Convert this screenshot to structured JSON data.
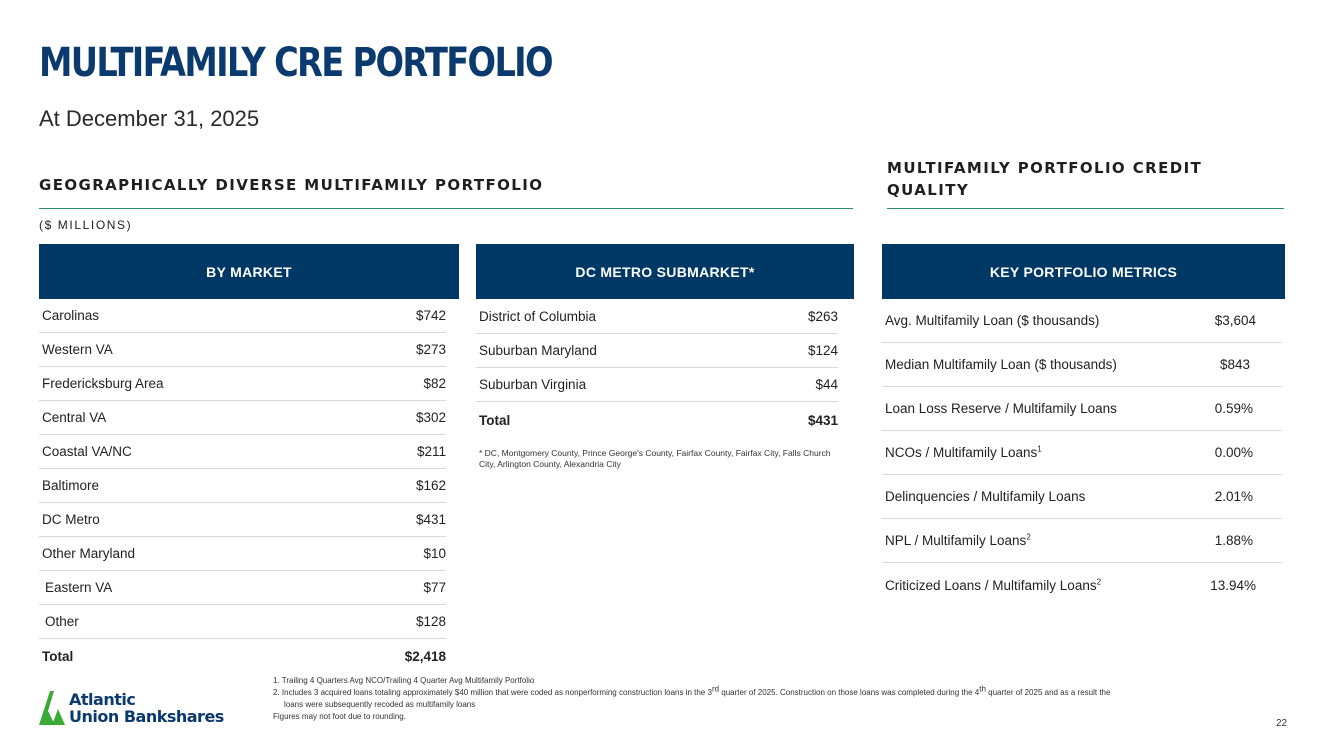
{
  "header": {
    "title": "MULTIFAMILY CRE PORTFOLIO",
    "subtitle": "At December 31, 2025"
  },
  "left_section": {
    "heading": "GEOGRAPHICALLY DIVERSE MULTIFAMILY PORTFOLIO",
    "units": "($ MILLIONS)"
  },
  "right_section": {
    "heading_line1": "MULTIFAMILY PORTFOLIO CREDIT",
    "heading_line2": "QUALITY"
  },
  "by_market": {
    "header": "BY MARKET",
    "rows": [
      {
        "label": "Carolinas",
        "value": "$742"
      },
      {
        "label": "Western VA",
        "value": "$273"
      },
      {
        "label": "Fredericksburg Area",
        "value": "$82"
      },
      {
        "label": "Central VA",
        "value": "$302"
      },
      {
        "label": "Coastal VA/NC",
        "value": "$211"
      },
      {
        "label": "Baltimore",
        "value": "$162"
      },
      {
        "label": "DC Metro",
        "value": "$431"
      },
      {
        "label": "Other Maryland",
        "value": "$10"
      },
      {
        "label": "Eastern VA",
        "value": "$77"
      },
      {
        "label": "Other",
        "value": "$128"
      }
    ],
    "total": {
      "label": "Total",
      "value": "$2,418"
    }
  },
  "dc_metro": {
    "header": "DC METRO SUBMARKET*",
    "rows": [
      {
        "label": "District of Columbia",
        "value": "$263"
      },
      {
        "label": "Suburban Maryland",
        "value": "$124"
      },
      {
        "label": "Suburban Virginia",
        "value": "$44"
      }
    ],
    "total": {
      "label": "Total",
      "value": "$431"
    },
    "footnote": "* DC, Montgomery County, Prince George's County, Fairfax County, Fairfax City, Falls Church City, Arlington County, Alexandria City"
  },
  "key_metrics": {
    "header": "KEY PORTFOLIO METRICS",
    "rows": [
      {
        "label": "Avg. Multifamily Loan ($ thousands)",
        "sup": "",
        "value": "$3,604"
      },
      {
        "label": "Median Multifamily Loan ($ thousands)",
        "sup": "",
        "value": "$843"
      },
      {
        "label": "Loan Loss Reserve / Multifamily Loans",
        "sup": "",
        "value": "0.59%"
      },
      {
        "label": "NCOs / Multifamily Loans",
        "sup": "1",
        "value": "0.00%"
      },
      {
        "label": "Delinquencies / Multifamily Loans",
        "sup": "",
        "value": "2.01%"
      },
      {
        "label": "NPL / Multifamily Loans",
        "sup": "2",
        "value": "1.88%"
      },
      {
        "label": "Criticized Loans / Multifamily Loans",
        "sup": "2",
        "value": "13.94%"
      }
    ]
  },
  "notes": {
    "n1": "1. Trailing 4 Quarters Avg NCO/Trailing 4 Quarter Avg Multifamily Portfolio",
    "n2a": "2. Includes 3 acquired loans totaling approximately $40 million that were coded as nonperforming construction loans in the 3",
    "n2_sup1": "rd",
    "n2b": " quarter of 2025. Construction on those loans was completed during the 4",
    "n2_sup2": "th",
    "n2c": " quarter of 2025 and as a result the",
    "n2d": "loans were subsequently recoded as multifamily loans",
    "n3": "Figures may not foot due to rounding."
  },
  "logo": {
    "line1": "Atlantic",
    "line2": "Union Bankshares",
    "green": "#3aa935",
    "navy": "#0b3a6e"
  },
  "page_number": "22"
}
